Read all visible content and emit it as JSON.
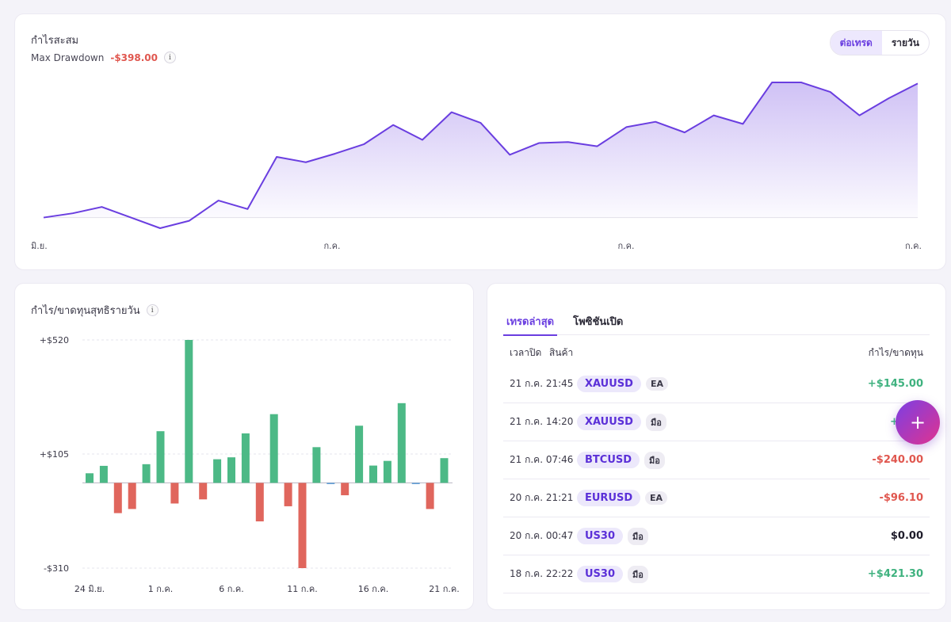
{
  "cumulative": {
    "title": "กำไรสะสม",
    "drawdown_label": "Max Drawdown",
    "drawdown_value": "-$398.00",
    "info_icon": "i",
    "toggle": {
      "per_trade": "ต่อเทรด",
      "daily": "รายวัน",
      "active": "per_trade"
    },
    "chart_data": {
      "type": "area",
      "x_labels": [
        "มิ.ย.",
        "ก.ค.",
        "ก.ค.",
        "ก.ค."
      ],
      "values": [
        0,
        20,
        50,
        0,
        -50,
        -15,
        80,
        40,
        285,
        260,
        300,
        345,
        435,
        365,
        495,
        445,
        295,
        350,
        355,
        335,
        425,
        450,
        400,
        480,
        440,
        635,
        635,
        590,
        480,
        560,
        630
      ],
      "ylim": [
        -50,
        635
      ],
      "baseline": 0,
      "color": "#6a3ee0"
    }
  },
  "daily": {
    "title": "กำไร/ขาดทุนสุทธิรายวัน",
    "info_icon": "i",
    "chart_data": {
      "type": "bar",
      "y_ticks": [
        {
          "value": 520,
          "label": "+$520"
        },
        {
          "value": 105,
          "label": "+$105"
        },
        {
          "value": -310,
          "label": "-$310"
        }
      ],
      "x_tick_labels": [
        {
          "index": 0,
          "label": "24 มิ.ย."
        },
        {
          "index": 5,
          "label": "1 ก.ค."
        },
        {
          "index": 10,
          "label": "6 ก.ค."
        },
        {
          "index": 15,
          "label": "11 ก.ค."
        },
        {
          "index": 20,
          "label": "16 ก.ค."
        },
        {
          "index": 25,
          "label": "21 ก.ค."
        }
      ],
      "values": [
        35,
        62,
        -110,
        -95,
        68,
        188,
        -75,
        520,
        -60,
        86,
        93,
        180,
        -140,
        250,
        -85,
        -310,
        130,
        -5,
        -45,
        208,
        63,
        80,
        290,
        -5,
        -95,
        90
      ],
      "ylim": [
        -310,
        520
      ],
      "pos_color": "#4cb986",
      "neg_color": "#e0665d",
      "small_color": "#5b9bd5"
    }
  },
  "trades": {
    "tabs": [
      "เทรดล่าสุด",
      "โพซิชันเปิด"
    ],
    "active_tab": 0,
    "headers": {
      "time": "เวลาปิด",
      "symbol": "สินค้า",
      "pnl": "กำไร/ขาดทุน"
    },
    "rows": [
      {
        "time": "21 ก.ค. 21:45",
        "symbol": "XAUUSD",
        "type": "EA",
        "pnl": "+$145.00",
        "sign": "pos"
      },
      {
        "time": "21 ก.ค. 14:20",
        "symbol": "XAUUSD",
        "type": "มือ",
        "pnl": "+$1…",
        "sign": "pos"
      },
      {
        "time": "21 ก.ค. 07:46",
        "symbol": "BTCUSD",
        "type": "มือ",
        "pnl": "-$240.00",
        "sign": "neg"
      },
      {
        "time": "20 ก.ค. 21:21",
        "symbol": "EURUSD",
        "type": "EA",
        "pnl": "-$96.10",
        "sign": "neg"
      },
      {
        "time": "20 ก.ค. 00:47",
        "symbol": "US30",
        "type": "มือ",
        "pnl": "$0.00",
        "sign": "zero"
      },
      {
        "time": "18 ก.ค. 22:22",
        "symbol": "US30",
        "type": "มือ",
        "pnl": "+$421.30",
        "sign": "pos"
      }
    ]
  },
  "fab": {
    "icon": "+",
    "icon_name": "plus-icon"
  }
}
